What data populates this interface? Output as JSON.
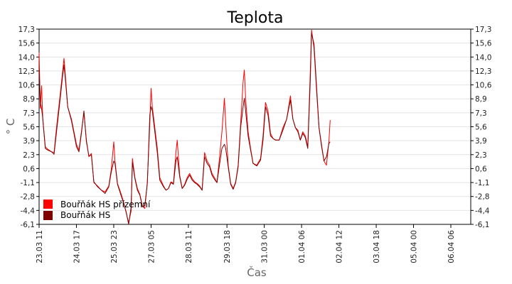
{
  "chart_data": {
    "type": "line",
    "title": "Teplota",
    "xlabel": "Čas",
    "ylabel": "° C",
    "ylim": [
      -6.1,
      17.3
    ],
    "yticks": [
      "17,3",
      "15,6",
      "14,0",
      "12,3",
      "10,6",
      "8,9",
      "7,3",
      "5,6",
      "3,9",
      "2,3",
      "0,6",
      "-1,1",
      "-2,8",
      "-4,4",
      "-6,1"
    ],
    "x_range_hours": [
      0,
      347
    ],
    "xticks": [
      {
        "label": "23.03 11",
        "h": 0
      },
      {
        "label": "24.03 17",
        "h": 30
      },
      {
        "label": "25.03 23",
        "h": 60
      },
      {
        "label": "27.03 05",
        "h": 90
      },
      {
        "label": "28.03 11",
        "h": 120
      },
      {
        "label": "29.03 18",
        "h": 151
      },
      {
        "label": "31.03 00",
        "h": 181
      },
      {
        "label": "01.04 06",
        "h": 211
      },
      {
        "label": "02.04 12",
        "h": 241
      },
      {
        "label": "03.04 18",
        "h": 271
      },
      {
        "label": "05.04 00",
        "h": 301
      },
      {
        "label": "06.04 06",
        "h": 331
      }
    ],
    "grid": true,
    "legend": "bottom-left",
    "series": [
      {
        "name": "Bouřňák HS přízemní",
        "color": "#ff0000",
        "points": [
          [
            0,
            14.5
          ],
          [
            1,
            7.8
          ],
          [
            2,
            10.5
          ],
          [
            3,
            6.5
          ],
          [
            5,
            3.2
          ],
          [
            7,
            2.9
          ],
          [
            10,
            2.6
          ],
          [
            12,
            2.5
          ],
          [
            14,
            5.5
          ],
          [
            17,
            9.5
          ],
          [
            19,
            12.3
          ],
          [
            20,
            13.8
          ],
          [
            21,
            12.0
          ],
          [
            23,
            8.0
          ],
          [
            26,
            6.5
          ],
          [
            28,
            5.0
          ],
          [
            30,
            3.5
          ],
          [
            32,
            2.8
          ],
          [
            34,
            5.0
          ],
          [
            36,
            7.3
          ],
          [
            38,
            4.0
          ],
          [
            40,
            2.0
          ],
          [
            42,
            2.4
          ],
          [
            44,
            -1.1
          ],
          [
            47,
            -1.5
          ],
          [
            50,
            -2.0
          ],
          [
            53,
            -2.2
          ],
          [
            56,
            -1.5
          ],
          [
            58,
            0.5
          ],
          [
            60,
            3.8
          ],
          [
            61,
            1.5
          ],
          [
            63,
            -1.2
          ],
          [
            66,
            -2.5
          ],
          [
            68,
            -3.5
          ],
          [
            70,
            -4.7
          ],
          [
            72,
            -5.9
          ],
          [
            74,
            -4.5
          ],
          [
            75,
            1.8
          ],
          [
            77,
            -0.5
          ],
          [
            79,
            -1.8
          ],
          [
            81,
            -2.5
          ],
          [
            83,
            -3.9
          ],
          [
            85,
            -4.2
          ],
          [
            87,
            -1.0
          ],
          [
            89,
            6.0
          ],
          [
            90,
            10.2
          ],
          [
            91,
            8.0
          ],
          [
            93,
            5.5
          ],
          [
            95,
            3.0
          ],
          [
            97,
            -0.5
          ],
          [
            100,
            -1.5
          ],
          [
            102,
            -2.0
          ],
          [
            104,
            -1.8
          ],
          [
            106,
            -1.0
          ],
          [
            108,
            -1.2
          ],
          [
            110,
            2.5
          ],
          [
            111,
            4.0
          ],
          [
            113,
            -0.2
          ],
          [
            115,
            -1.8
          ],
          [
            117,
            -1.3
          ],
          [
            119,
            -0.5
          ],
          [
            121,
            0.0
          ],
          [
            123,
            -0.6
          ],
          [
            125,
            -1.0
          ],
          [
            127,
            -1.2
          ],
          [
            129,
            -1.5
          ],
          [
            131,
            -2.0
          ],
          [
            133,
            2.5
          ],
          [
            135,
            1.5
          ],
          [
            137,
            1.0
          ],
          [
            139,
            0.0
          ],
          [
            141,
            -0.5
          ],
          [
            143,
            -1.1
          ],
          [
            145,
            1.8
          ],
          [
            147,
            5.0
          ],
          [
            149,
            9.0
          ],
          [
            150,
            6.0
          ],
          [
            152,
            1.0
          ],
          [
            154,
            -1.2
          ],
          [
            156,
            -1.8
          ],
          [
            158,
            -1.0
          ],
          [
            160,
            1.0
          ],
          [
            162,
            6.0
          ],
          [
            164,
            11.0
          ],
          [
            165,
            12.4
          ],
          [
            166,
            9.0
          ],
          [
            168,
            5.0
          ],
          [
            170,
            3.0
          ],
          [
            172,
            1.2
          ],
          [
            175,
            1.0
          ],
          [
            178,
            1.8
          ],
          [
            180,
            4.5
          ],
          [
            182,
            8.5
          ],
          [
            184,
            7.5
          ],
          [
            186,
            4.8
          ],
          [
            188,
            4.2
          ],
          [
            190,
            4.0
          ],
          [
            193,
            4.0
          ],
          [
            196,
            5.5
          ],
          [
            199,
            6.5
          ],
          [
            202,
            9.3
          ],
          [
            204,
            6.5
          ],
          [
            206,
            5.5
          ],
          [
            208,
            5.2
          ],
          [
            210,
            4.0
          ],
          [
            212,
            5.0
          ],
          [
            214,
            4.5
          ],
          [
            216,
            3.2
          ],
          [
            218,
            12.0
          ],
          [
            219,
            17.2
          ],
          [
            221,
            15.0
          ],
          [
            223,
            10.0
          ],
          [
            225,
            5.5
          ],
          [
            227,
            3.5
          ],
          [
            229,
            1.5
          ],
          [
            231,
            1.0
          ],
          [
            233,
            3.9
          ],
          [
            234,
            6.4
          ]
        ]
      },
      {
        "name": "Bouřňák HS",
        "color": "#800000",
        "points": [
          [
            0,
            12.5
          ],
          [
            1,
            8.5
          ],
          [
            2,
            7.8
          ],
          [
            3,
            6.5
          ],
          [
            5,
            3.0
          ],
          [
            7,
            2.8
          ],
          [
            10,
            2.6
          ],
          [
            12,
            2.3
          ],
          [
            14,
            5.0
          ],
          [
            17,
            9.0
          ],
          [
            19,
            11.8
          ],
          [
            20,
            13.0
          ],
          [
            21,
            11.5
          ],
          [
            23,
            8.0
          ],
          [
            26,
            6.3
          ],
          [
            28,
            4.8
          ],
          [
            30,
            3.2
          ],
          [
            32,
            2.6
          ],
          [
            34,
            4.8
          ],
          [
            36,
            7.5
          ],
          [
            38,
            3.8
          ],
          [
            40,
            2.1
          ],
          [
            42,
            2.2
          ],
          [
            44,
            -1.0
          ],
          [
            47,
            -1.6
          ],
          [
            50,
            -2.0
          ],
          [
            53,
            -2.4
          ],
          [
            56,
            -1.6
          ],
          [
            58,
            0.2
          ],
          [
            60,
            1.5
          ],
          [
            61,
            1.2
          ],
          [
            63,
            -1.3
          ],
          [
            66,
            -2.7
          ],
          [
            68,
            -3.6
          ],
          [
            70,
            -4.6
          ],
          [
            72,
            -6.1
          ],
          [
            74,
            -4.0
          ],
          [
            75,
            1.3
          ],
          [
            77,
            -0.6
          ],
          [
            79,
            -2.0
          ],
          [
            81,
            -2.6
          ],
          [
            83,
            -4.0
          ],
          [
            85,
            -3.8
          ],
          [
            87,
            -1.2
          ],
          [
            89,
            7.0
          ],
          [
            90,
            8.0
          ],
          [
            91,
            7.5
          ],
          [
            93,
            5.0
          ],
          [
            95,
            2.5
          ],
          [
            97,
            -0.8
          ],
          [
            100,
            -1.6
          ],
          [
            102,
            -2.0
          ],
          [
            104,
            -1.8
          ],
          [
            106,
            -1.1
          ],
          [
            108,
            -1.3
          ],
          [
            110,
            1.5
          ],
          [
            111,
            2.0
          ],
          [
            113,
            -0.4
          ],
          [
            115,
            -1.8
          ],
          [
            117,
            -1.4
          ],
          [
            119,
            -0.7
          ],
          [
            121,
            -0.2
          ],
          [
            123,
            -0.8
          ],
          [
            125,
            -1.1
          ],
          [
            127,
            -1.3
          ],
          [
            129,
            -1.6
          ],
          [
            131,
            -2.0
          ],
          [
            133,
            2.0
          ],
          [
            135,
            1.2
          ],
          [
            137,
            0.8
          ],
          [
            139,
            -0.2
          ],
          [
            141,
            -0.7
          ],
          [
            143,
            -1.1
          ],
          [
            145,
            1.0
          ],
          [
            147,
            3.0
          ],
          [
            149,
            3.5
          ],
          [
            150,
            3.0
          ],
          [
            152,
            0.8
          ],
          [
            154,
            -1.3
          ],
          [
            156,
            -1.9
          ],
          [
            158,
            -1.1
          ],
          [
            160,
            0.8
          ],
          [
            162,
            5.5
          ],
          [
            164,
            8.0
          ],
          [
            165,
            9.0
          ],
          [
            166,
            7.5
          ],
          [
            168,
            4.5
          ],
          [
            170,
            2.8
          ],
          [
            172,
            1.2
          ],
          [
            175,
            0.9
          ],
          [
            178,
            1.6
          ],
          [
            180,
            4.0
          ],
          [
            182,
            8.0
          ],
          [
            184,
            7.0
          ],
          [
            186,
            4.5
          ],
          [
            188,
            4.2
          ],
          [
            190,
            4.0
          ],
          [
            193,
            4.0
          ],
          [
            196,
            5.2
          ],
          [
            199,
            6.5
          ],
          [
            202,
            8.8
          ],
          [
            204,
            6.5
          ],
          [
            206,
            5.5
          ],
          [
            208,
            5.0
          ],
          [
            210,
            4.0
          ],
          [
            212,
            4.8
          ],
          [
            214,
            4.3
          ],
          [
            216,
            3.0
          ],
          [
            218,
            11.0
          ],
          [
            219,
            16.8
          ],
          [
            221,
            15.5
          ],
          [
            223,
            10.5
          ],
          [
            225,
            5.5
          ],
          [
            227,
            3.3
          ],
          [
            229,
            1.5
          ],
          [
            231,
            2.0
          ],
          [
            233,
            3.6
          ],
          [
            234,
            3.8
          ]
        ]
      }
    ]
  }
}
